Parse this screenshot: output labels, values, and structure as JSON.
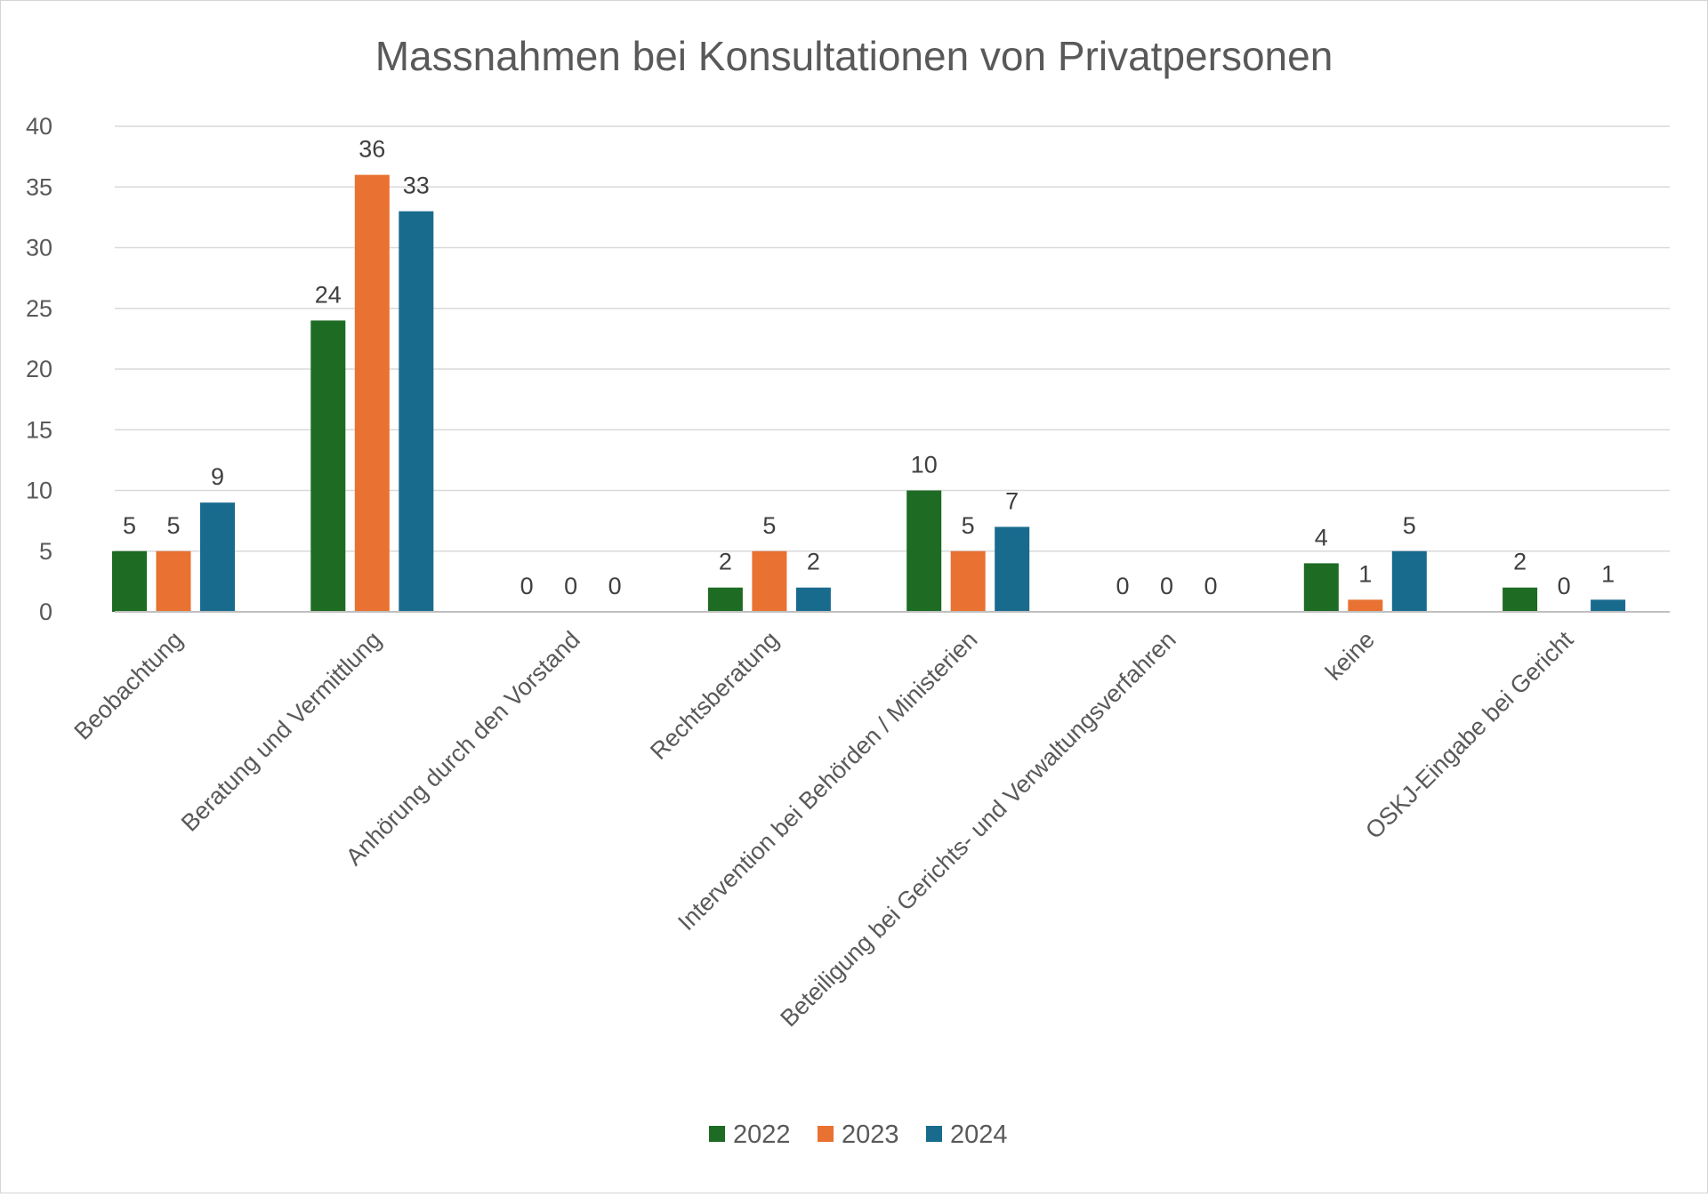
{
  "chart_data": {
    "type": "bar",
    "title": "Massnahmen bei Konsultationen von Privatpersonen",
    "xlabel": "",
    "ylabel": "",
    "ylim": [
      0,
      40
    ],
    "yticks": [
      "0",
      "5",
      "10",
      "15",
      "20",
      "25",
      "30",
      "35",
      "40"
    ],
    "grid": true,
    "legend_position": "bottom",
    "categories": [
      "Beobachtung",
      "Beratung und Vermittlung",
      "Anhörung durch den Vorstand",
      "Rechtsberatung",
      "Intervention bei Behörden / Ministerien",
      "Beteiligung bei Gerichts- und Verwaltungsverfahren",
      "keine",
      "OSKJ-Eingabe bei Gericht"
    ],
    "series": [
      {
        "name": "2022",
        "color": "#1e6b24",
        "values": [
          5,
          24,
          0,
          2,
          10,
          0,
          4,
          2
        ]
      },
      {
        "name": "2023",
        "color": "#e97132",
        "values": [
          5,
          36,
          0,
          5,
          5,
          0,
          1,
          0
        ]
      },
      {
        "name": "2024",
        "color": "#196b8e",
        "values": [
          9,
          33,
          0,
          2,
          7,
          0,
          5,
          1
        ]
      }
    ]
  }
}
